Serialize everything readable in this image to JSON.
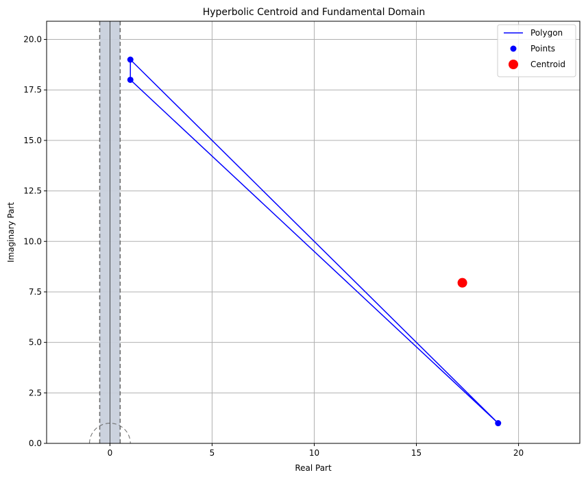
{
  "chart_data": {
    "type": "line",
    "title": "Hyperbolic Centroid and Fundamental Domain",
    "xlabel": "Real Part",
    "ylabel": "Imaginary Part",
    "xlim": [
      -3.1,
      23.0
    ],
    "ylim": [
      0,
      20.9
    ],
    "xticks": [
      0,
      5,
      10,
      15,
      20
    ],
    "yticks": [
      0.0,
      2.5,
      5.0,
      7.5,
      10.0,
      12.5,
      15.0,
      17.5,
      20.0
    ],
    "xtick_labels": [
      "0",
      "5",
      "10",
      "15",
      "20"
    ],
    "ytick_labels": [
      "0.0",
      "2.5",
      "5.0",
      "7.5",
      "10.0",
      "12.5",
      "15.0",
      "17.5",
      "20.0"
    ],
    "grid": true,
    "legend": {
      "placement": "top-right",
      "entries": [
        {
          "label": "Polygon",
          "kind": "line",
          "color": "#0000ff"
        },
        {
          "label": "Points",
          "kind": "marker",
          "color": "#0000ff"
        },
        {
          "label": "Centroid",
          "kind": "marker-large",
          "color": "#ff0000"
        }
      ]
    },
    "fundamental_domain": {
      "x_range": [
        -0.5,
        0.5
      ],
      "fill_color": "#c8d0dc",
      "boundary_color": "#666666",
      "unit_circle_radius": 1,
      "axis_line_x": 0
    },
    "series": [
      {
        "name": "Polygon",
        "type": "line",
        "color": "#0000ff",
        "points": [
          [
            1,
            18
          ],
          [
            1,
            19
          ],
          [
            19,
            1
          ],
          [
            1,
            18
          ]
        ]
      },
      {
        "name": "Points",
        "type": "scatter",
        "color": "#0000ff",
        "points": [
          [
            1,
            18
          ],
          [
            1,
            19
          ],
          [
            19,
            1
          ]
        ]
      },
      {
        "name": "Centroid",
        "type": "scatter",
        "color": "#ff0000",
        "points": [
          [
            17.25,
            7.95
          ]
        ]
      }
    ]
  }
}
